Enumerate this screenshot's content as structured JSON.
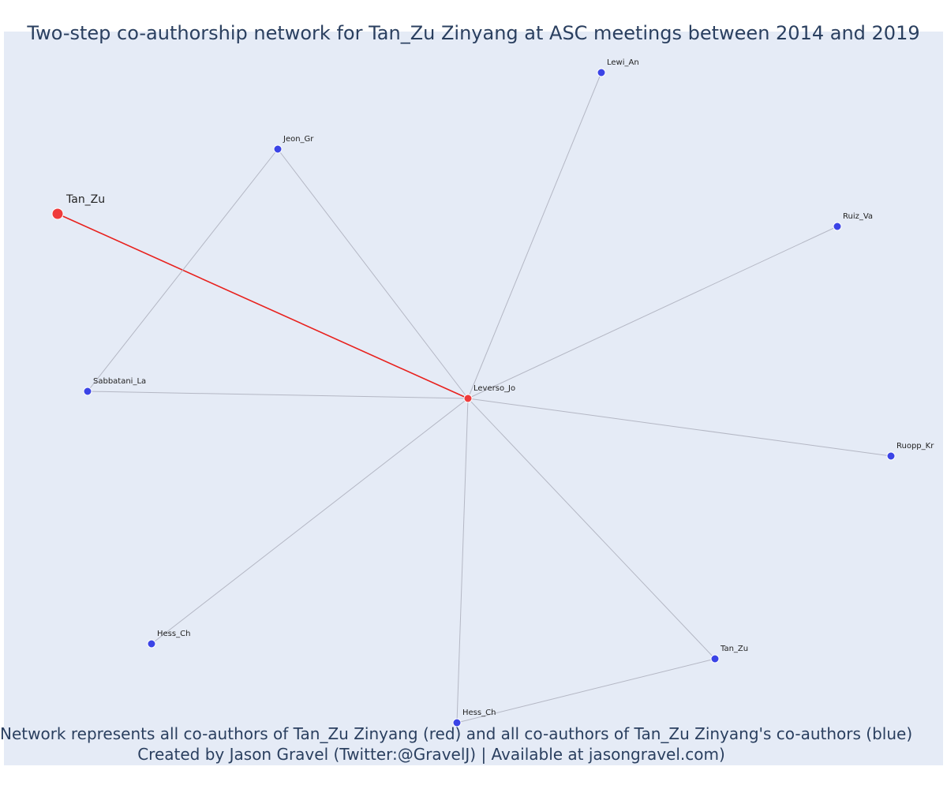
{
  "title": "Two-step co-authorship network for Tan_Zu Zinyang at ASC meetings between 2014 and 2019",
  "footer": {
    "line1": "Network represents all co-authors of Tan_Zu Zinyang (red) and all co-authors of Tan_Zu Zinyang's co-authors (blue)",
    "line2": "Created by Jason Gravel (Twitter:@GravelJ) | Available at jasongravel.com)"
  },
  "colors": {
    "background": "#e5ebf6",
    "focal": "#ef3b3b",
    "direct_coauthor": "#ef3b3b",
    "second_degree": "#3b44e6",
    "focal_edge": "#e8211d",
    "edge": "#b4b7c4",
    "text": "#2a3f5f"
  },
  "nodes": [
    {
      "id": "tan_zu_focal",
      "label": "Tan_Zu",
      "group": "focal"
    },
    {
      "id": "leverso_jo",
      "label": "Leverso_Jo",
      "group": "direct"
    },
    {
      "id": "lewi_an",
      "label": "Lewi_An",
      "group": "second"
    },
    {
      "id": "jeon_gr",
      "label": "Jeon_Gr",
      "group": "second"
    },
    {
      "id": "ruiz_va",
      "label": "Ruiz_Va",
      "group": "second"
    },
    {
      "id": "sabbatani_la",
      "label": "Sabbatani_La",
      "group": "second"
    },
    {
      "id": "ruopp_kr",
      "label": "Ruopp_Kr",
      "group": "second"
    },
    {
      "id": "hess_ch_left",
      "label": "Hess_Ch",
      "group": "second"
    },
    {
      "id": "tan_zu_right",
      "label": "Tan_Zu",
      "group": "second"
    },
    {
      "id": "hess_ch_bottom",
      "label": "Hess_Ch",
      "group": "second"
    }
  ],
  "edges": [
    {
      "source": "tan_zu_focal",
      "target": "leverso_jo",
      "focal": true
    },
    {
      "source": "leverso_jo",
      "target": "lewi_an",
      "focal": false
    },
    {
      "source": "leverso_jo",
      "target": "jeon_gr",
      "focal": false
    },
    {
      "source": "leverso_jo",
      "target": "ruiz_va",
      "focal": false
    },
    {
      "source": "leverso_jo",
      "target": "sabbatani_la",
      "focal": false
    },
    {
      "source": "leverso_jo",
      "target": "ruopp_kr",
      "focal": false
    },
    {
      "source": "leverso_jo",
      "target": "hess_ch_left",
      "focal": false
    },
    {
      "source": "leverso_jo",
      "target": "tan_zu_right",
      "focal": false
    },
    {
      "source": "leverso_jo",
      "target": "hess_ch_bottom",
      "focal": false
    },
    {
      "source": "jeon_gr",
      "target": "sabbatani_la",
      "focal": false
    },
    {
      "source": "tan_zu_right",
      "target": "hess_ch_bottom",
      "focal": false
    }
  ]
}
